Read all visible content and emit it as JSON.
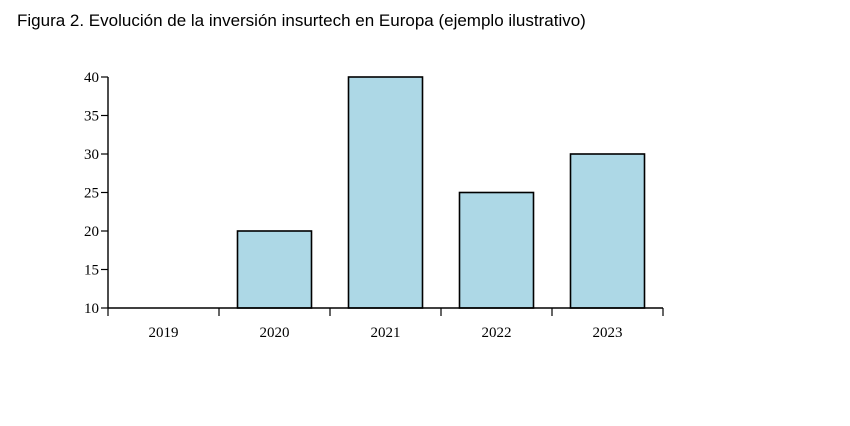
{
  "figure": {
    "title": "Figura 2. Evolución de la inversión insurtech en Europa (ejemplo ilustrativo)"
  },
  "chart_data": {
    "type": "bar",
    "categories": [
      "2019",
      "2020",
      "2021",
      "2022",
      "2023"
    ],
    "values": [
      10,
      20,
      40,
      25,
      30
    ],
    "ylim": [
      10,
      40
    ],
    "yticks": [
      10,
      15,
      20,
      25,
      30,
      35,
      40
    ],
    "grid": false,
    "bar_color": "#add8e6",
    "edge_color": "#000000"
  }
}
